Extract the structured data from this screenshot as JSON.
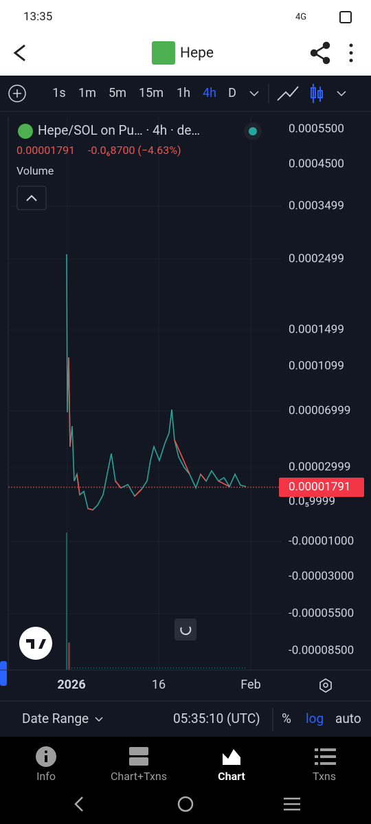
{
  "status_bar": {
    "time": "13:35",
    "network": "4G"
  },
  "header": {
    "title": "Hepe"
  },
  "toolbar": {
    "intervals": [
      "1s",
      "1m",
      "5m",
      "15m",
      "1h",
      "4h",
      "D"
    ]
  },
  "legend": {
    "symbol": "Hepe/SOL on Pu… · 4h · de…",
    "price": "0.00001791",
    "change": "-0.0₆8700 (−4.63%)",
    "volume": "Volume"
  },
  "price_axis": {
    "labels": [
      "0.0005500",
      "0.0004500",
      "0.0003499",
      "0.0002499",
      "0.0001499",
      "0.0001099",
      "0.00006999",
      "0.00002999",
      "0.0₅9999",
      "-0.00001000",
      "-0.00003000",
      "-0.00005500",
      "-0.00008500"
    ],
    "last_price": "0.00001791"
  },
  "time_axis": {
    "labels": [
      "2026",
      "16",
      "Feb"
    ]
  },
  "bottom_bar": {
    "date_range": "Date Range",
    "time": "05:35:10 (UTC)",
    "percent": "%",
    "log": "log",
    "auto": "auto"
  },
  "tabs": [
    "Info",
    "Chart+Txns",
    "Chart",
    "Txns"
  ]
}
